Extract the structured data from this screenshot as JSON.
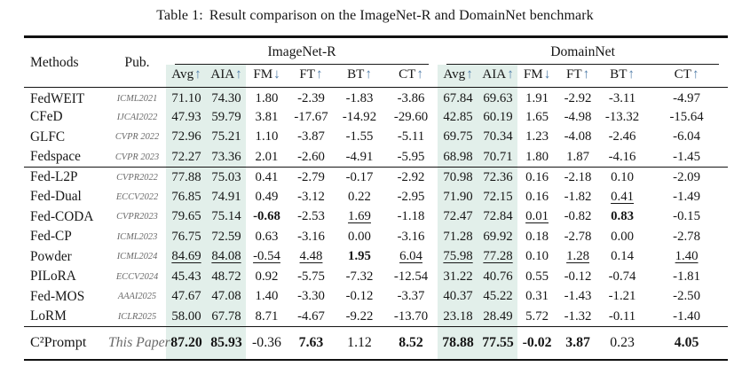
{
  "caption": {
    "label": "Table 1:",
    "text": "Result comparison on the ImageNet-R and DomainNet benchmark"
  },
  "colors": {
    "highlight": "#e2efea",
    "arrow": "#4f7ca8",
    "pub_text": "#6a6a6a",
    "rule": "#141414"
  },
  "table": {
    "col_headers": {
      "methods": "Methods",
      "pub": "Pub."
    },
    "groups": [
      {
        "label": "ImageNet-R"
      },
      {
        "label": "DomainNet"
      }
    ],
    "metrics": [
      {
        "label": "Avg",
        "arrow": "↑",
        "highlight": true
      },
      {
        "label": "AIA",
        "arrow": "↑",
        "highlight": true
      },
      {
        "label": "FM",
        "arrow": "↓",
        "highlight": false
      },
      {
        "label": "FT",
        "arrow": "↑",
        "highlight": false
      },
      {
        "label": "BT",
        "arrow": "↑",
        "highlight": false
      },
      {
        "label": "CT",
        "arrow": "↑",
        "highlight": false
      }
    ],
    "row_groups": [
      {
        "rows": [
          {
            "method": "FedWEIT",
            "pub": "ICML2021",
            "values": [
              "71.10",
              "74.30",
              "1.80",
              "-2.39",
              "-1.83",
              "-3.86",
              "67.84",
              "69.63",
              "1.91",
              "-2.92",
              "-3.11",
              "-4.97"
            ],
            "styles": [
              "",
              "",
              "",
              "",
              "",
              "",
              "",
              "",
              "",
              "",
              "",
              ""
            ]
          },
          {
            "method": "CFeD",
            "pub": "IJCAI2022",
            "values": [
              "47.93",
              "59.79",
              "3.81",
              "-17.67",
              "-14.92",
              "-29.60",
              "42.85",
              "60.19",
              "1.65",
              "-4.98",
              "-13.32",
              "-15.64"
            ],
            "styles": [
              "",
              "",
              "",
              "",
              "",
              "",
              "",
              "",
              "",
              "",
              "",
              ""
            ]
          },
          {
            "method": "GLFC",
            "pub": "CVPR 2022",
            "values": [
              "72.96",
              "75.21",
              "1.10",
              "-3.87",
              "-1.55",
              "-5.11",
              "69.75",
              "70.34",
              "1.23",
              "-4.08",
              "-2.46",
              "-6.04"
            ],
            "styles": [
              "",
              "",
              "",
              "",
              "",
              "",
              "",
              "",
              "",
              "",
              "",
              ""
            ]
          },
          {
            "method": "Fedspace",
            "pub": "CVPR 2023",
            "values": [
              "72.27",
              "73.36",
              "2.01",
              "-2.60",
              "-4.91",
              "-5.95",
              "68.98",
              "70.71",
              "1.80",
              "1.87",
              "-4.16",
              "-1.45"
            ],
            "styles": [
              "",
              "",
              "",
              "",
              "",
              "",
              "",
              "",
              "",
              "",
              "",
              ""
            ]
          }
        ]
      },
      {
        "rows": [
          {
            "method": "Fed-L2P",
            "pub": "CVPR2022",
            "values": [
              "77.88",
              "75.03",
              "0.41",
              "-2.79",
              "-0.17",
              "-2.92",
              "70.98",
              "72.36",
              "0.16",
              "-2.18",
              "0.10",
              "-2.09"
            ],
            "styles": [
              "",
              "",
              "",
              "",
              "",
              "",
              "",
              "",
              "",
              "",
              "",
              ""
            ]
          },
          {
            "method": "Fed-Dual",
            "pub": "ECCV2022",
            "values": [
              "76.85",
              "74.91",
              "0.49",
              "-3.12",
              "0.22",
              "-2.95",
              "71.90",
              "72.15",
              "0.16",
              "-1.82",
              "0.41",
              "-1.49"
            ],
            "styles": [
              "",
              "",
              "",
              "",
              "",
              "",
              "",
              "",
              "",
              "",
              "u",
              ""
            ]
          },
          {
            "method": "Fed-CODA",
            "pub": "CVPR2023",
            "values": [
              "79.65",
              "75.14",
              "-0.68",
              "-2.53",
              "1.69",
              "-1.18",
              "72.47",
              "72.84",
              "0.01",
              "-0.82",
              "0.83",
              "-0.15"
            ],
            "styles": [
              "",
              "",
              "b",
              "",
              "u",
              "",
              "",
              "",
              "u",
              "",
              "b",
              ""
            ]
          },
          {
            "method": "Fed-CP",
            "pub": "ICML2023",
            "values": [
              "76.75",
              "72.59",
              "0.63",
              "-3.16",
              "0.00",
              "-3.16",
              "71.28",
              "69.92",
              "0.18",
              "-2.78",
              "0.00",
              "-2.78"
            ],
            "styles": [
              "",
              "",
              "",
              "",
              "",
              "",
              "",
              "",
              "",
              "",
              "",
              ""
            ]
          },
          {
            "method": "Powder",
            "pub": "ICML2024",
            "values": [
              "84.69",
              "84.08",
              "-0.54",
              "4.48",
              "1.95",
              "6.04",
              "75.98",
              "77.28",
              "0.10",
              "1.28",
              "0.14",
              "1.40"
            ],
            "styles": [
              "u",
              "u",
              "u",
              "u",
              "b",
              "u",
              "u",
              "u",
              "",
              "u",
              "",
              "u"
            ]
          },
          {
            "method": "PILoRA",
            "pub": "ECCV2024",
            "values": [
              "45.43",
              "48.72",
              "0.92",
              "-5.75",
              "-7.32",
              "-12.54",
              "31.22",
              "40.76",
              "0.55",
              "-0.12",
              "-0.74",
              "-1.81"
            ],
            "styles": [
              "",
              "",
              "",
              "",
              "",
              "",
              "",
              "",
              "",
              "",
              "",
              ""
            ]
          },
          {
            "method": "Fed-MOS",
            "pub": "AAAI2025",
            "values": [
              "47.67",
              "47.08",
              "1.40",
              "-3.30",
              "-0.12",
              "-3.37",
              "40.37",
              "45.22",
              "0.31",
              "-1.43",
              "-1.21",
              "-2.50"
            ],
            "styles": [
              "",
              "",
              "",
              "",
              "",
              "",
              "",
              "",
              "",
              "",
              "",
              ""
            ]
          },
          {
            "method": "LoRM",
            "pub": "ICLR2025",
            "values": [
              "58.00",
              "67.78",
              "8.71",
              "-4.67",
              "-9.22",
              "-13.70",
              "23.18",
              "28.49",
              "5.72",
              "-1.32",
              "-0.11",
              "-1.40"
            ],
            "styles": [
              "",
              "",
              "",
              "",
              "",
              "",
              "",
              "",
              "",
              "",
              "",
              ""
            ]
          }
        ]
      },
      {
        "rows": [
          {
            "method": "C²Prompt",
            "pub": "This Paper",
            "values": [
              "87.20",
              "85.93",
              "-0.36",
              "7.63",
              "1.12",
              "8.52",
              "78.88",
              "77.55",
              "-0.02",
              "3.87",
              "0.23",
              "4.05"
            ],
            "styles": [
              "b",
              "b",
              "",
              "b",
              "",
              "b",
              "b",
              "b",
              "b",
              "b",
              "",
              "b"
            ]
          }
        ]
      }
    ]
  }
}
